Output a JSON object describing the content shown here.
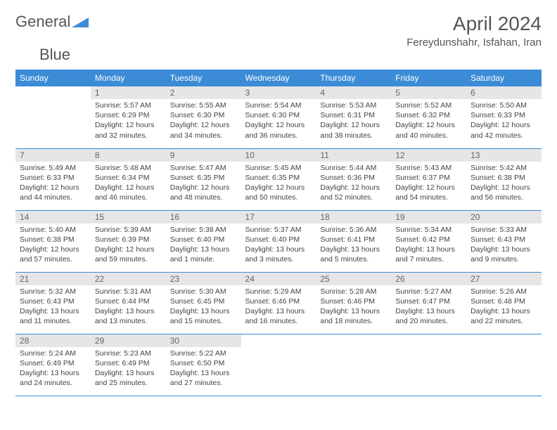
{
  "brand": {
    "word1": "General",
    "word2": "Blue"
  },
  "colors": {
    "accent": "#3b8bd6",
    "header_bg": "#3b8bd6",
    "header_text": "#ffffff",
    "daynum_bg": "#e6e6e6",
    "daynum_text": "#666666",
    "body_text": "#444444",
    "title_text": "#555555",
    "background": "#ffffff",
    "row_border": "#3b8bd6"
  },
  "typography": {
    "base_font": "Arial, Helvetica, sans-serif",
    "month_title_size_pt": 21,
    "location_size_pt": 11,
    "weekday_header_size_pt": 9,
    "daynum_size_pt": 9,
    "cell_text_size_pt": 8
  },
  "title": "April 2024",
  "location": "Fereydunshahr, Isfahan, Iran",
  "weekdays": [
    "Sunday",
    "Monday",
    "Tuesday",
    "Wednesday",
    "Thursday",
    "Friday",
    "Saturday"
  ],
  "calendar": {
    "first_weekday_index": 1,
    "days_in_month": 30,
    "columns": 7,
    "layout": "month-grid"
  },
  "days": [
    {
      "n": 1,
      "sunrise": "5:57 AM",
      "sunset": "6:29 PM",
      "daylight": "12 hours and 32 minutes."
    },
    {
      "n": 2,
      "sunrise": "5:55 AM",
      "sunset": "6:30 PM",
      "daylight": "12 hours and 34 minutes."
    },
    {
      "n": 3,
      "sunrise": "5:54 AM",
      "sunset": "6:30 PM",
      "daylight": "12 hours and 36 minutes."
    },
    {
      "n": 4,
      "sunrise": "5:53 AM",
      "sunset": "6:31 PM",
      "daylight": "12 hours and 38 minutes."
    },
    {
      "n": 5,
      "sunrise": "5:52 AM",
      "sunset": "6:32 PM",
      "daylight": "12 hours and 40 minutes."
    },
    {
      "n": 6,
      "sunrise": "5:50 AM",
      "sunset": "6:33 PM",
      "daylight": "12 hours and 42 minutes."
    },
    {
      "n": 7,
      "sunrise": "5:49 AM",
      "sunset": "6:33 PM",
      "daylight": "12 hours and 44 minutes."
    },
    {
      "n": 8,
      "sunrise": "5:48 AM",
      "sunset": "6:34 PM",
      "daylight": "12 hours and 46 minutes."
    },
    {
      "n": 9,
      "sunrise": "5:47 AM",
      "sunset": "6:35 PM",
      "daylight": "12 hours and 48 minutes."
    },
    {
      "n": 10,
      "sunrise": "5:45 AM",
      "sunset": "6:35 PM",
      "daylight": "12 hours and 50 minutes."
    },
    {
      "n": 11,
      "sunrise": "5:44 AM",
      "sunset": "6:36 PM",
      "daylight": "12 hours and 52 minutes."
    },
    {
      "n": 12,
      "sunrise": "5:43 AM",
      "sunset": "6:37 PM",
      "daylight": "12 hours and 54 minutes."
    },
    {
      "n": 13,
      "sunrise": "5:42 AM",
      "sunset": "6:38 PM",
      "daylight": "12 hours and 56 minutes."
    },
    {
      "n": 14,
      "sunrise": "5:40 AM",
      "sunset": "6:38 PM",
      "daylight": "12 hours and 57 minutes."
    },
    {
      "n": 15,
      "sunrise": "5:39 AM",
      "sunset": "6:39 PM",
      "daylight": "12 hours and 59 minutes."
    },
    {
      "n": 16,
      "sunrise": "5:38 AM",
      "sunset": "6:40 PM",
      "daylight": "13 hours and 1 minute."
    },
    {
      "n": 17,
      "sunrise": "5:37 AM",
      "sunset": "6:40 PM",
      "daylight": "13 hours and 3 minutes."
    },
    {
      "n": 18,
      "sunrise": "5:36 AM",
      "sunset": "6:41 PM",
      "daylight": "13 hours and 5 minutes."
    },
    {
      "n": 19,
      "sunrise": "5:34 AM",
      "sunset": "6:42 PM",
      "daylight": "13 hours and 7 minutes."
    },
    {
      "n": 20,
      "sunrise": "5:33 AM",
      "sunset": "6:43 PM",
      "daylight": "13 hours and 9 minutes."
    },
    {
      "n": 21,
      "sunrise": "5:32 AM",
      "sunset": "6:43 PM",
      "daylight": "13 hours and 11 minutes."
    },
    {
      "n": 22,
      "sunrise": "5:31 AM",
      "sunset": "6:44 PM",
      "daylight": "13 hours and 13 minutes."
    },
    {
      "n": 23,
      "sunrise": "5:30 AM",
      "sunset": "6:45 PM",
      "daylight": "13 hours and 15 minutes."
    },
    {
      "n": 24,
      "sunrise": "5:29 AM",
      "sunset": "6:46 PM",
      "daylight": "13 hours and 16 minutes."
    },
    {
      "n": 25,
      "sunrise": "5:28 AM",
      "sunset": "6:46 PM",
      "daylight": "13 hours and 18 minutes."
    },
    {
      "n": 26,
      "sunrise": "5:27 AM",
      "sunset": "6:47 PM",
      "daylight": "13 hours and 20 minutes."
    },
    {
      "n": 27,
      "sunrise": "5:26 AM",
      "sunset": "6:48 PM",
      "daylight": "13 hours and 22 minutes."
    },
    {
      "n": 28,
      "sunrise": "5:24 AM",
      "sunset": "6:49 PM",
      "daylight": "13 hours and 24 minutes."
    },
    {
      "n": 29,
      "sunrise": "5:23 AM",
      "sunset": "6:49 PM",
      "daylight": "13 hours and 25 minutes."
    },
    {
      "n": 30,
      "sunrise": "5:22 AM",
      "sunset": "6:50 PM",
      "daylight": "13 hours and 27 minutes."
    }
  ],
  "labels": {
    "sunrise": "Sunrise:",
    "sunset": "Sunset:",
    "daylight": "Daylight:"
  }
}
